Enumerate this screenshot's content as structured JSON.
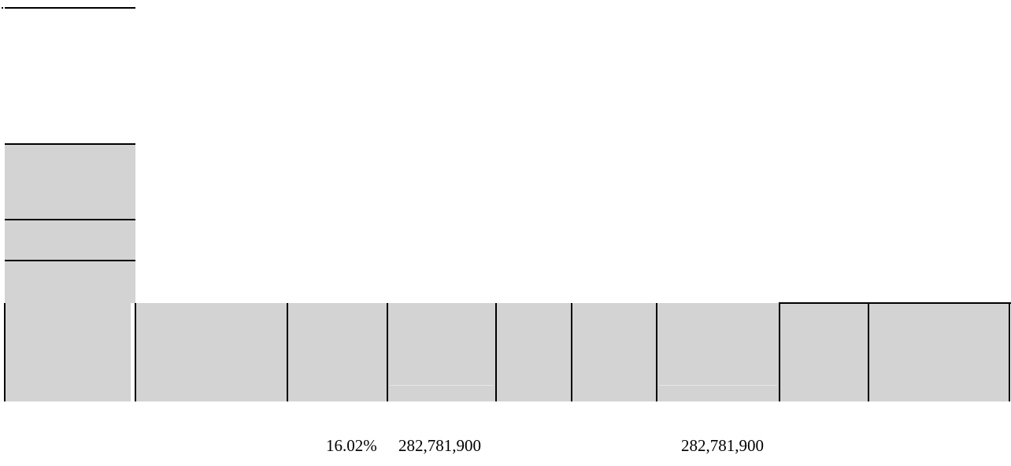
{
  "colors": {
    "cell_fill": "#d3d3d3",
    "rule": "#000000",
    "background": "#ffffff"
  },
  "table": {
    "header_cells": [
      "",
      "",
      "",
      "",
      "",
      "",
      "",
      "",
      ""
    ],
    "values_row": {
      "percent": "16.02%",
      "amount_1": "282,781,900",
      "amount_2": "282,781,900"
    }
  }
}
